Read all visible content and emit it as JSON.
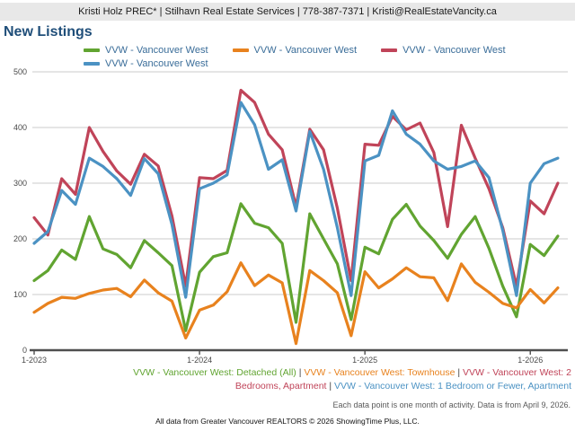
{
  "header": {
    "text": "Kristi Holz PREC* | Stilhavn Real Estate Services | 778-387-7371 | Kristi@RealEstateVancity.ca"
  },
  "title": "New Listings",
  "colors": {
    "green": "#61a431",
    "orange": "#e8821e",
    "crimson": "#c04459",
    "blue": "#4b92c3",
    "gridline": "#cbcbcb",
    "axis": "#4f4f4f",
    "title": "#1f4e79",
    "legend_text": "#3a6d99",
    "header_bg": "#e8e8e8"
  },
  "chart_data": {
    "type": "line",
    "title": "New Listings",
    "xlabel": "",
    "ylabel": "",
    "ylim": [
      0,
      500
    ],
    "ytick_step": 100,
    "grid": "horizontal",
    "legend_position": "top",
    "x": [
      "2023-01",
      "2023-02",
      "2023-03",
      "2023-04",
      "2023-05",
      "2023-06",
      "2023-07",
      "2023-08",
      "2023-09",
      "2023-10",
      "2023-11",
      "2023-12",
      "2024-01",
      "2024-02",
      "2024-03",
      "2024-04",
      "2024-05",
      "2024-06",
      "2024-07",
      "2024-08",
      "2024-09",
      "2024-10",
      "2024-11",
      "2024-12",
      "2025-01",
      "2025-02",
      "2025-03",
      "2025-04",
      "2025-05",
      "2025-06",
      "2025-07",
      "2025-08",
      "2025-09",
      "2025-10",
      "2025-11",
      "2025-12",
      "2026-01",
      "2026-02",
      "2026-03"
    ],
    "xticks": [
      {
        "index": 0,
        "label": "1-2023"
      },
      {
        "index": 12,
        "label": "1-2024"
      },
      {
        "index": 24,
        "label": "1-2025"
      },
      {
        "index": 36,
        "label": "1-2026"
      }
    ],
    "series": [
      {
        "name": "VVW - Vancouver West: Detached (All)",
        "legend_label": "VVW - Vancouver West",
        "color_key": "green",
        "values": [
          125,
          143,
          180,
          163,
          240,
          182,
          172,
          148,
          197,
          175,
          152,
          35,
          140,
          168,
          175,
          263,
          228,
          220,
          192,
          50,
          245,
          200,
          155,
          55,
          185,
          173,
          235,
          262,
          223,
          197,
          165,
          208,
          240,
          183,
          115,
          60,
          190,
          170,
          205
        ]
      },
      {
        "name": "VVW - Vancouver West: Townhouse",
        "legend_label": "VVW - Vancouver West",
        "color_key": "orange",
        "values": [
          68,
          84,
          95,
          93,
          102,
          108,
          111,
          96,
          126,
          103,
          88,
          22,
          72,
          81,
          105,
          157,
          116,
          135,
          121,
          12,
          143,
          125,
          103,
          26,
          141,
          112,
          128,
          148,
          132,
          130,
          89,
          155,
          122,
          104,
          84,
          76,
          109,
          85,
          112
        ]
      },
      {
        "name": "VVW - Vancouver West: 2 Bedrooms, Apartment",
        "legend_label": "VVW - Vancouver West",
        "color_key": "crimson",
        "values": [
          238,
          207,
          308,
          280,
          400,
          357,
          322,
          298,
          352,
          331,
          241,
          115,
          310,
          308,
          323,
          467,
          445,
          388,
          360,
          258,
          397,
          360,
          255,
          125,
          370,
          368,
          420,
          396,
          408,
          355,
          222,
          404,
          345,
          290,
          220,
          115,
          268,
          245,
          300
        ]
      },
      {
        "name": "VVW - Vancouver West: 1 Bedroom or Fewer, Apartment",
        "legend_label": "VVW - Vancouver West",
        "color_key": "blue",
        "values": [
          192,
          213,
          287,
          262,
          345,
          330,
          308,
          278,
          344,
          317,
          226,
          95,
          290,
          300,
          315,
          445,
          405,
          325,
          342,
          250,
          393,
          325,
          220,
          98,
          340,
          350,
          430,
          388,
          370,
          340,
          325,
          330,
          340,
          310,
          215,
          98,
          300,
          335,
          345
        ]
      }
    ]
  },
  "footnotes": {
    "series_lines": [
      [
        {
          "t": "VVW - Vancouver West: Detached (All)",
          "c": "green"
        },
        {
          "t": " | ",
          "c": "sep"
        },
        {
          "t": "VVW - Vancouver West: Townhouse",
          "c": "orange"
        },
        {
          "t": " | ",
          "c": "sep"
        },
        {
          "t": "VVW - Vancouver West: 2",
          "c": "crimson"
        }
      ],
      [
        {
          "t": "Bedrooms, Apartment",
          "c": "crimson"
        },
        {
          "t": " | ",
          "c": "sep"
        },
        {
          "t": "VVW - Vancouver West: 1 Bedroom or Fewer, Apartment",
          "c": "blue"
        }
      ]
    ],
    "activity_note": "Each data point is one month of activity. Data is from April 9, 2026.",
    "copyright": "All data from Greater Vancouver REALTORS © 2026 ShowingTime Plus, LLC."
  }
}
